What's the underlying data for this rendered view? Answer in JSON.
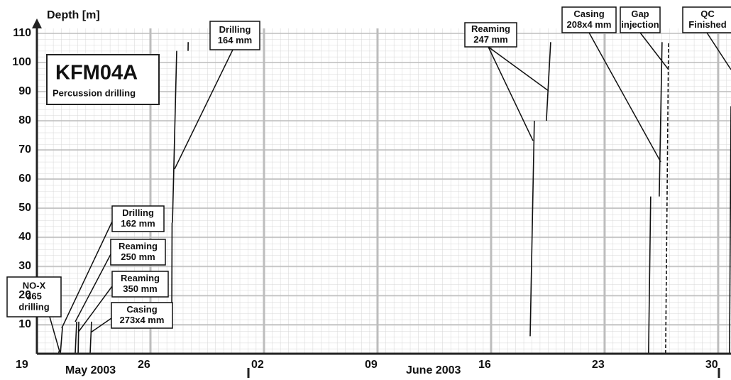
{
  "chart_data": {
    "type": "segments",
    "title": "KFM04A",
    "subtitle": "Percussion drilling",
    "y_label": "Depth [m]",
    "month_labels": [
      "May 2003",
      "June 2003"
    ],
    "xlim": [
      "2003-05-19T00:00",
      "2003-06-30T19:00"
    ],
    "xticks": [
      {
        "value": "2003-05-19T00:00",
        "label": "19"
      },
      {
        "value": "2003-05-26T00:00",
        "label": "26"
      },
      {
        "value": "2003-06-02T00:00",
        "label": "02"
      },
      {
        "value": "2003-06-09T00:00",
        "label": "09"
      },
      {
        "value": "2003-06-16T00:00",
        "label": "16"
      },
      {
        "value": "2003-06-23T00:00",
        "label": "23"
      },
      {
        "value": "2003-06-30T00:00",
        "label": "30"
      }
    ],
    "ylim": [
      0,
      110
    ],
    "yticks": [
      10,
      20,
      30,
      40,
      50,
      60,
      70,
      80,
      90,
      100,
      110
    ],
    "grid": true,
    "color": "#111111",
    "segments": [
      {
        "x": [
          "2003-05-20T08:00",
          "2003-05-20T09:00"
        ],
        "values": [
          0,
          1
        ]
      },
      {
        "x": [
          "2003-05-20T10:40",
          "2003-05-20T13:50"
        ],
        "values": [
          0,
          9
        ]
      },
      {
        "x": [
          "2003-05-21T08:40",
          "2003-05-21T10:50"
        ],
        "values": [
          0,
          11
        ]
      },
      {
        "x": [
          "2003-05-21T13:00",
          "2003-05-21T14:00"
        ],
        "values": [
          0,
          11
        ]
      },
      {
        "x": [
          "2003-05-22T06:45",
          "2003-05-22T08:50"
        ],
        "values": [
          0,
          11
        ]
      },
      {
        "x": [
          "2003-05-27T07:30",
          "2003-05-27T08:00"
        ],
        "values": [
          11,
          45
        ]
      },
      {
        "x": [
          "2003-05-27T08:35",
          "2003-05-27T14:50"
        ],
        "values": [
          45,
          104
        ]
      },
      {
        "x": [
          "2003-05-28T07:40",
          "2003-05-28T07:50"
        ],
        "values": [
          104,
          107
        ]
      },
      {
        "x": [
          "2003-06-18T09:50",
          "2003-06-18T16:00"
        ],
        "values": [
          6,
          80
        ]
      },
      {
        "x": [
          "2003-06-19T09:50",
          "2003-06-19T16:10"
        ],
        "values": [
          80,
          107
        ]
      },
      {
        "x": [
          "2003-06-25T17:00",
          "2003-06-25T20:10"
        ],
        "values": [
          0,
          54
        ]
      },
      {
        "x": [
          "2003-06-26T08:50",
          "2003-06-26T13:00"
        ],
        "values": [
          54,
          107
        ]
      },
      {
        "x": [
          "2003-06-26T18:15",
          "2003-06-26T22:35"
        ],
        "values": [
          0,
          107
        ],
        "dashed": true
      },
      {
        "x": [
          "2003-06-30T16:50",
          "2003-06-30T19:00"
        ],
        "values": [
          0,
          85
        ]
      }
    ],
    "annotations": [
      {
        "lines": [
          "NO-X",
          "365",
          "drilling"
        ]
      },
      {
        "lines": [
          "Drilling",
          "162 mm"
        ]
      },
      {
        "lines": [
          "Reaming",
          "250 mm"
        ]
      },
      {
        "lines": [
          "Reaming",
          "350 mm"
        ]
      },
      {
        "lines": [
          "Casing",
          "273x4 mm"
        ]
      },
      {
        "lines": [
          "Drilling",
          "164 mm"
        ]
      },
      {
        "lines": [
          "Reaming",
          "247 mm"
        ]
      },
      {
        "lines": [
          "Casing",
          "208x4 mm"
        ]
      },
      {
        "lines": [
          "Gap",
          "injection"
        ]
      },
      {
        "lines": [
          "QC",
          "Finished"
        ]
      }
    ]
  }
}
